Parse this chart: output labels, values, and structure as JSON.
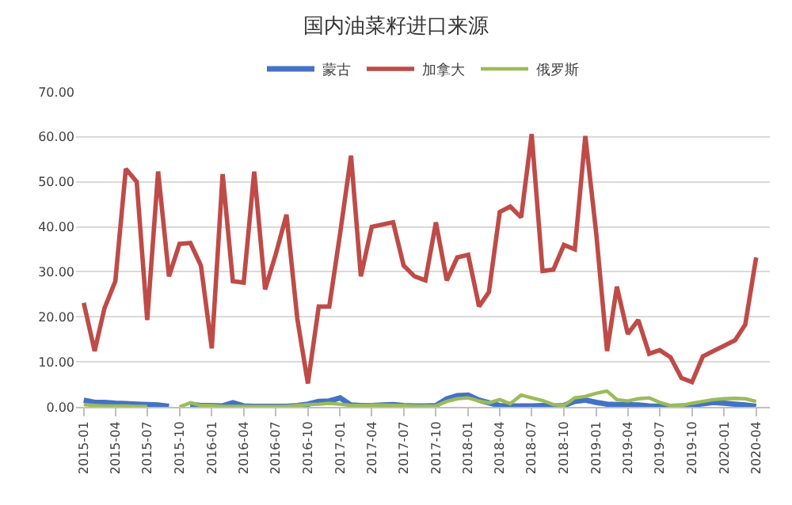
{
  "chart_data": {
    "type": "line",
    "title": "国内油菜籽进口来源",
    "x": [
      "2015-01",
      "2015-02",
      "2015-03",
      "2015-04",
      "2015-05",
      "2015-06",
      "2015-07",
      "2015-08",
      "2015-09",
      "2015-10",
      "2015-11",
      "2015-12",
      "2016-01",
      "2016-02",
      "2016-03",
      "2016-04",
      "2016-05",
      "2016-06",
      "2016-07",
      "2016-08",
      "2016-09",
      "2016-10",
      "2016-11",
      "2016-12",
      "2017-01",
      "2017-02",
      "2017-03",
      "2017-04",
      "2017-05",
      "2017-06",
      "2017-07",
      "2017-08",
      "2017-09",
      "2017-10",
      "2017-11",
      "2017-12",
      "2018-01",
      "2018-02",
      "2018-03",
      "2018-04",
      "2018-05",
      "2018-06",
      "2018-07",
      "2018-08",
      "2018-09",
      "2018-10",
      "2018-11",
      "2018-12",
      "2019-01",
      "2019-02",
      "2019-03",
      "2019-04",
      "2019-05",
      "2019-06",
      "2019-07",
      "2019-08",
      "2019-09",
      "2019-10",
      "2019-11",
      "2019-12",
      "2020-01",
      "2020-02",
      "2020-03",
      "2020-04"
    ],
    "series": [
      {
        "name": "蒙古",
        "color": "#4472c4",
        "values": [
          1.5,
          1.0,
          1.0,
          0.8,
          0.7,
          0.6,
          0.5,
          0.4,
          0.1,
          null,
          0.6,
          0.3,
          0.3,
          0.2,
          0.9,
          0.2,
          0.1,
          0.1,
          0.1,
          0.1,
          0.3,
          0.6,
          1.2,
          1.3,
          2.0,
          0.4,
          0.3,
          0.3,
          0.4,
          0.5,
          0.3,
          0.2,
          0.2,
          0.3,
          1.8,
          2.5,
          2.6,
          1.5,
          0.9,
          0.3,
          0.2,
          0.2,
          0.2,
          0.3,
          0.2,
          0.3,
          1.2,
          1.5,
          1.0,
          0.6,
          0.5,
          0.5,
          0.4,
          0.2,
          0.1,
          0.1,
          0.2,
          0.3,
          0.7,
          1.0,
          0.8,
          0.6,
          0.4,
          0.1
        ]
      },
      {
        "name": "加拿大",
        "color": "#be4b48",
        "values": [
          23.1,
          12.4,
          21.9,
          27.9,
          52.9,
          50.0,
          19.3,
          52.3,
          29.0,
          36.2,
          36.4,
          31.4,
          13.0,
          51.7,
          27.9,
          27.6,
          52.3,
          26.1,
          33.8,
          42.7,
          19.5,
          5.2,
          22.3,
          22.3,
          38.6,
          55.8,
          29.0,
          40.0,
          40.5,
          41.0,
          31.4,
          29.0,
          28.1,
          41.0,
          28.1,
          33.2,
          33.8,
          22.3,
          25.5,
          43.3,
          44.5,
          42.1,
          60.6,
          30.2,
          30.5,
          36.0,
          35.0,
          60.2,
          38.6,
          12.4,
          26.7,
          16.2,
          19.3,
          11.8,
          12.6,
          11.0,
          6.4,
          5.5,
          11.2,
          12.4,
          13.6,
          14.8,
          18.3,
          33.2
        ]
      },
      {
        "name": "俄罗斯",
        "color": "#9bbb59",
        "values": [
          0.5,
          0.3,
          0.2,
          0.2,
          0.2,
          0.1,
          0.1,
          null,
          null,
          0.0,
          0.9,
          0.3,
          0.3,
          0.1,
          0.1,
          0.1,
          0.1,
          0.1,
          0.1,
          0.1,
          0.3,
          0.5,
          0.6,
          0.8,
          0.6,
          0.3,
          0.3,
          0.4,
          0.4,
          0.3,
          0.3,
          0.2,
          0.2,
          0.2,
          1.2,
          1.8,
          2.0,
          1.3,
          0.9,
          1.6,
          0.7,
          2.6,
          2.0,
          1.4,
          0.5,
          0.3,
          2.0,
          2.3,
          3.0,
          3.5,
          1.6,
          1.3,
          1.8,
          2.0,
          1.0,
          0.3,
          0.3,
          0.8,
          1.2,
          1.6,
          1.8,
          1.9,
          1.8,
          1.2
        ]
      }
    ],
    "xlim": [
      "2014-12-10",
      "2020-05-10"
    ],
    "xticks": [
      "2015-01",
      "2015-04",
      "2015-07",
      "2015-10",
      "2016-01",
      "2016-04",
      "2016-07",
      "2016-10",
      "2017-01",
      "2017-04",
      "2017-07",
      "2017-10",
      "2018-01",
      "2018-04",
      "2018-07",
      "2018-10",
      "2019-01",
      "2019-04",
      "2019-07",
      "2019-10",
      "2020-01",
      "2020-04"
    ],
    "ylim": [
      0,
      70
    ],
    "yticks": [
      {
        "value": 0,
        "label": "0.00"
      },
      {
        "value": 10,
        "label": "10.00"
      },
      {
        "value": 20,
        "label": "20.00"
      },
      {
        "value": 30,
        "label": "30.00"
      },
      {
        "value": 40,
        "label": "40.00"
      },
      {
        "value": 50,
        "label": "50.00"
      },
      {
        "value": 60,
        "label": "60.00"
      },
      {
        "value": 70,
        "label": "70.00"
      }
    ],
    "grid": "y",
    "legend": "top",
    "marker": "none",
    "line_style": "solid"
  }
}
